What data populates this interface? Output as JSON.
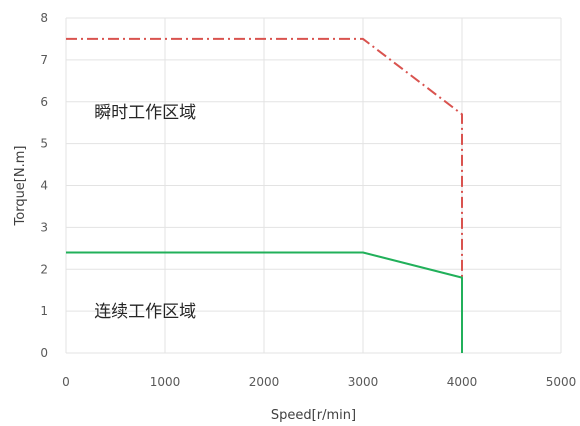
{
  "chart_data": {
    "type": "line",
    "xlabel": "Speed[r/min]",
    "ylabel": "Torque[N.m]",
    "xlim": [
      0,
      5000
    ],
    "ylim": [
      0,
      8
    ],
    "x_ticks": [
      "0",
      "1000",
      "2000",
      "3000",
      "4000",
      "5000"
    ],
    "y_ticks": [
      "0",
      "1",
      "2",
      "3",
      "4",
      "5",
      "6",
      "7",
      "8"
    ],
    "grid": true,
    "series": [
      {
        "style": "dash-dot",
        "color": "#d9534f",
        "points": [
          [
            0,
            7.5
          ],
          [
            3000,
            7.5
          ],
          [
            4000,
            5.7
          ],
          [
            4000,
            1.8
          ]
        ]
      },
      {
        "style": "solid",
        "color": "#21b05a",
        "points": [
          [
            0,
            2.4
          ],
          [
            3000,
            2.4
          ],
          [
            4000,
            1.8
          ],
          [
            4000,
            0
          ]
        ]
      }
    ],
    "annotations": [
      {
        "text": "瞬时工作区域",
        "x": 800,
        "y": 5.75
      },
      {
        "text": "连续工作区域",
        "x": 800,
        "y": 1.0
      }
    ]
  }
}
